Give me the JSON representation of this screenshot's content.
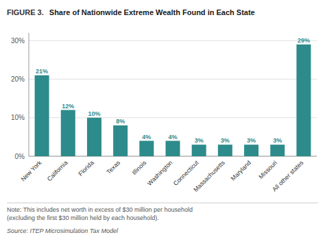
{
  "chart_data": {
    "type": "bar",
    "title": "Share of Nationwide Extreme Wealth Found in Each State",
    "categories": [
      "New York",
      "California",
      "Florida",
      "Texas",
      "Illinois",
      "Washington",
      "Connecticut",
      "Massachusetts",
      "Maryland",
      "Missouri",
      "All other states"
    ],
    "values": [
      21,
      12,
      10,
      8,
      4,
      4,
      3,
      3,
      3,
      3,
      29
    ],
    "value_labels": [
      "21%",
      "12%",
      "10%",
      "8%",
      "4%",
      "4%",
      "3%",
      "3%",
      "3%",
      "3%",
      "29%"
    ],
    "data_labels": true,
    "color": "#2e8b8b",
    "ylim": [
      0,
      32
    ],
    "yticks": [
      {
        "value": 0,
        "label": "0%"
      },
      {
        "value": 10,
        "label": "10%"
      },
      {
        "value": 20,
        "label": "20%"
      },
      {
        "value": 30,
        "label": "30%"
      }
    ],
    "grid": true,
    "annotations": [
      "FIGURE 3.",
      "Note: This includes net worth in excess of $30 million per household",
      "(excluding the first $30 million held by each household).",
      "Source: ITEP Microsimulation Tax Model"
    ]
  }
}
